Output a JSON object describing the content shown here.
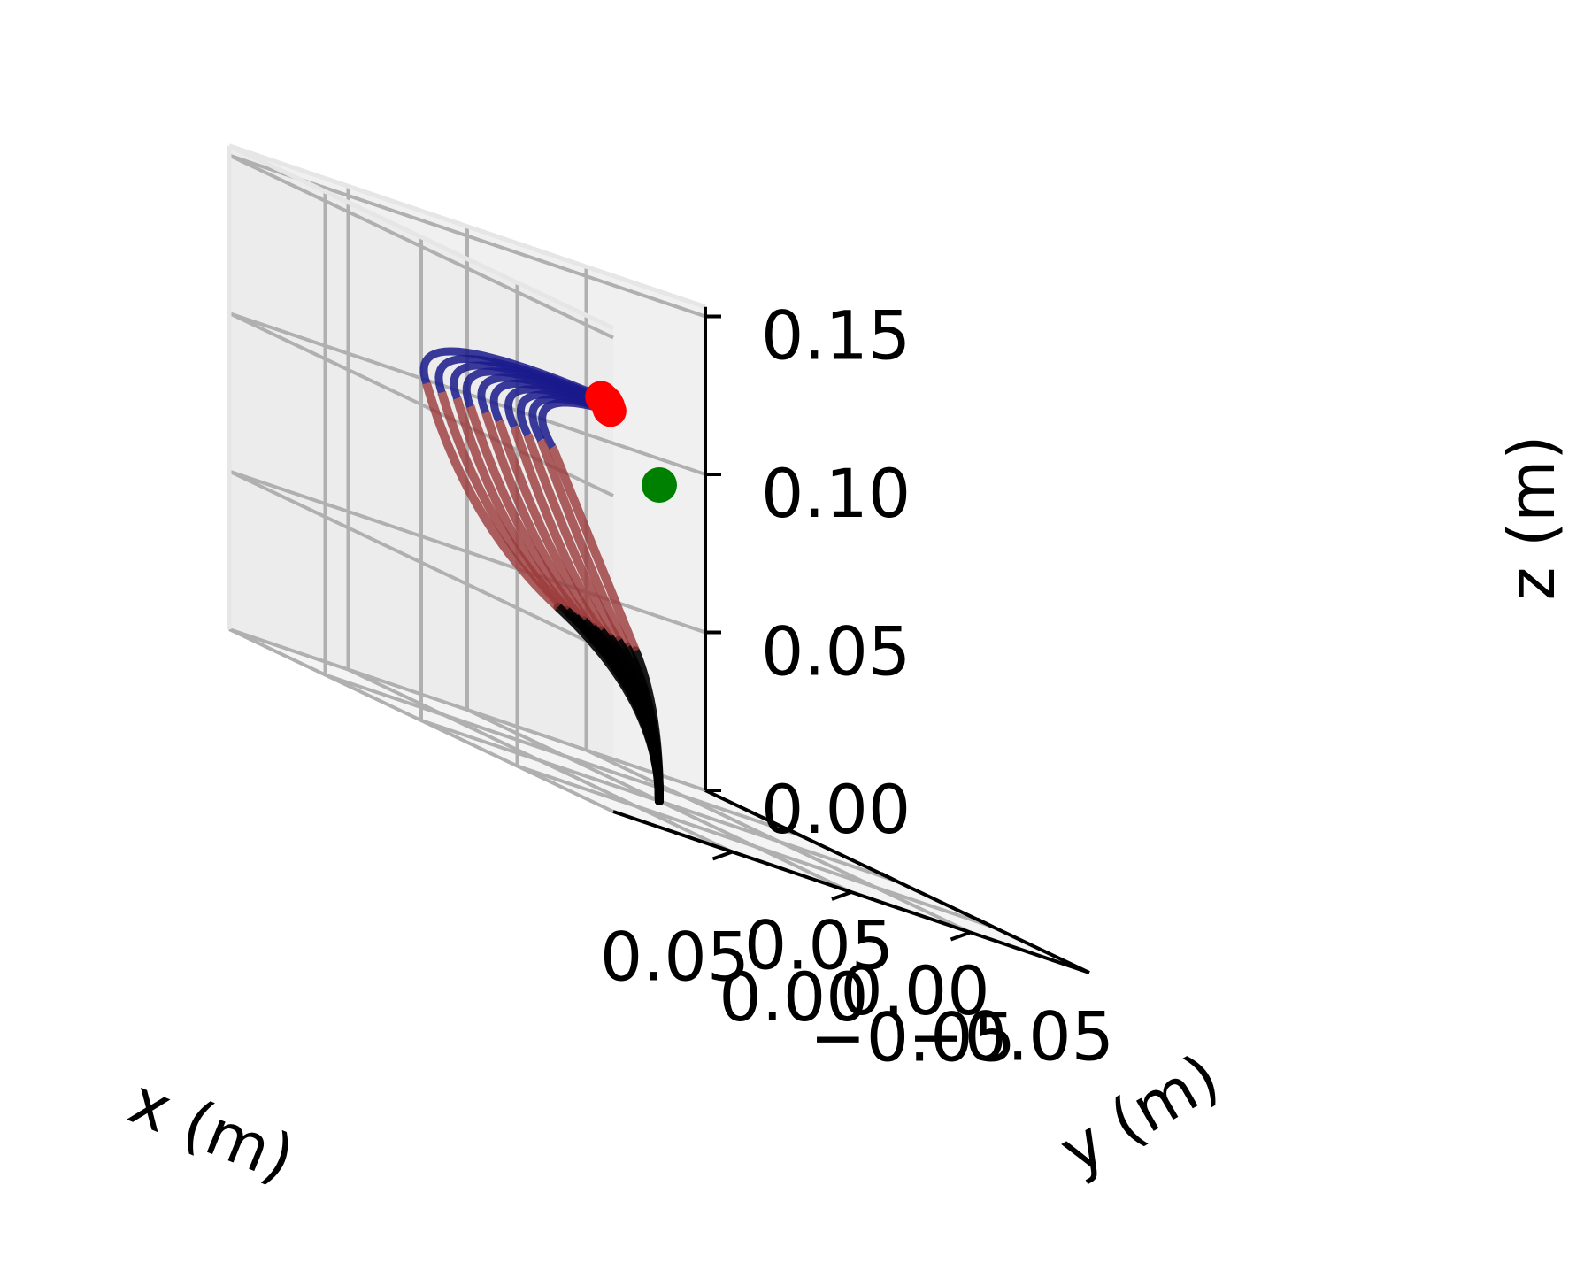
{
  "chart_data": {
    "type": "line",
    "projection": "3d",
    "title": "",
    "grid": true,
    "axes": {
      "x": {
        "label": "x (m)",
        "lim": [
          -0.1,
          0.1
        ],
        "ticks": [
          -0.05,
          0.0,
          0.05
        ],
        "tick_labels": [
          "−0.05",
          "0.00",
          "0.05"
        ]
      },
      "y": {
        "label": "y (m)",
        "lim": [
          -0.1,
          0.1
        ],
        "ticks": [
          -0.05,
          0.0,
          0.05
        ],
        "tick_labels": [
          "−0.05",
          "0.00",
          "0.05"
        ]
      },
      "z": {
        "label": "z (m)",
        "lim": [
          0.0,
          0.15
        ],
        "ticks": [
          0.0,
          0.05,
          0.1,
          0.15
        ],
        "tick_labels": [
          "0.00",
          "0.05",
          "0.10",
          "0.15"
        ]
      }
    },
    "colors": {
      "segment_base": "#000000",
      "segment_middle": "#9b3a3a",
      "segment_tip": "#1a1a8c",
      "tip_marker": "#ff0000",
      "target_marker": "#008000",
      "grid": "#b0b0b0",
      "pane": "#f2f2f2"
    },
    "series": [
      {
        "base_end": [
          0.01,
          0.0,
          0.045
        ],
        "mid_end": [
          0.04,
          0.006,
          0.1
        ],
        "tip": [
          -0.04,
          0.075,
          0.112
        ]
      },
      {
        "base_end": [
          0.012,
          0.002,
          0.045
        ],
        "mid_end": [
          0.044,
          0.007,
          0.101
        ],
        "tip": [
          -0.032,
          0.066,
          0.113
        ]
      },
      {
        "base_end": [
          0.014,
          0.004,
          0.046
        ],
        "mid_end": [
          0.048,
          0.009,
          0.101
        ],
        "tip": [
          -0.025,
          0.057,
          0.114
        ]
      },
      {
        "base_end": [
          0.016,
          0.006,
          0.046
        ],
        "mid_end": [
          0.052,
          0.011,
          0.102
        ],
        "tip": [
          -0.018,
          0.049,
          0.115
        ]
      },
      {
        "base_end": [
          0.018,
          0.008,
          0.047
        ],
        "mid_end": [
          0.056,
          0.014,
          0.102
        ],
        "tip": [
          -0.012,
          0.041,
          0.116
        ]
      },
      {
        "base_end": [
          0.02,
          0.01,
          0.047
        ],
        "mid_end": [
          0.06,
          0.016,
          0.103
        ],
        "tip": [
          -0.006,
          0.034,
          0.117
        ]
      },
      {
        "base_end": [
          0.022,
          0.012,
          0.048
        ],
        "mid_end": [
          0.064,
          0.019,
          0.103
        ],
        "tip": [
          0.0,
          0.027,
          0.118
        ]
      },
      {
        "base_end": [
          0.024,
          0.014,
          0.048
        ],
        "mid_end": [
          0.068,
          0.021,
          0.104
        ],
        "tip": [
          0.006,
          0.02,
          0.119
        ]
      },
      {
        "base_end": [
          0.026,
          0.016,
          0.049
        ],
        "mid_end": [
          0.072,
          0.024,
          0.104
        ],
        "tip": [
          0.012,
          0.014,
          0.12
        ]
      },
      {
        "base_end": [
          0.028,
          0.018,
          0.049
        ],
        "mid_end": [
          0.076,
          0.027,
          0.105
        ],
        "tip": [
          0.018,
          0.008,
          0.121
        ]
      }
    ],
    "target": [
      0.0,
      0.0,
      0.1
    ]
  }
}
